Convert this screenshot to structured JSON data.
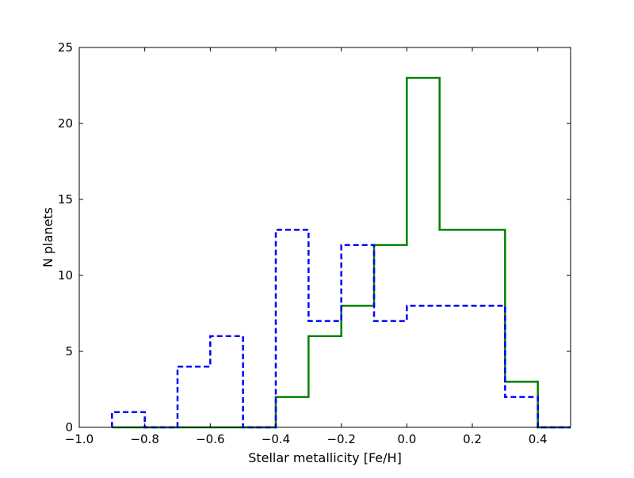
{
  "chart_data": {
    "type": "step-histogram",
    "title": "",
    "xlabel": "Stellar metallicity [Fe/H]",
    "ylabel": "N planets",
    "xlim": [
      -1.0,
      0.5
    ],
    "ylim": [
      0,
      25
    ],
    "xticks": [
      -1.0,
      -0.8,
      -0.6,
      -0.4,
      -0.2,
      0.0,
      0.2,
      0.4
    ],
    "xtick_labels": [
      "−1.0",
      "−0.8",
      "−0.6",
      "−0.4",
      "−0.2",
      "0.0",
      "0.2",
      "0.4"
    ],
    "yticks": [
      0,
      5,
      10,
      15,
      20,
      25
    ],
    "ytick_labels": [
      "0",
      "5",
      "10",
      "15",
      "20",
      "25"
    ],
    "grid": false,
    "series": [
      {
        "style": "solid",
        "color": "#008000",
        "bin_edges": [
          -0.9,
          -0.8,
          -0.7,
          -0.6,
          -0.5,
          -0.4,
          -0.3,
          -0.2,
          -0.1,
          0.0,
          0.1,
          0.2,
          0.3,
          0.4,
          0.5
        ],
        "counts": [
          0,
          0,
          0,
          0,
          0,
          2,
          6,
          8,
          12,
          23,
          13,
          13,
          3,
          0
        ]
      },
      {
        "style": "dashed",
        "color": "#0000ff",
        "bin_edges": [
          -0.9,
          -0.8,
          -0.7,
          -0.6,
          -0.5,
          -0.4,
          -0.3,
          -0.2,
          -0.1,
          0.0,
          0.1,
          0.2,
          0.3,
          0.4,
          0.5
        ],
        "counts": [
          1,
          0,
          4,
          6,
          0,
          13,
          7,
          12,
          7,
          8,
          8,
          8,
          2,
          0
        ]
      }
    ]
  }
}
